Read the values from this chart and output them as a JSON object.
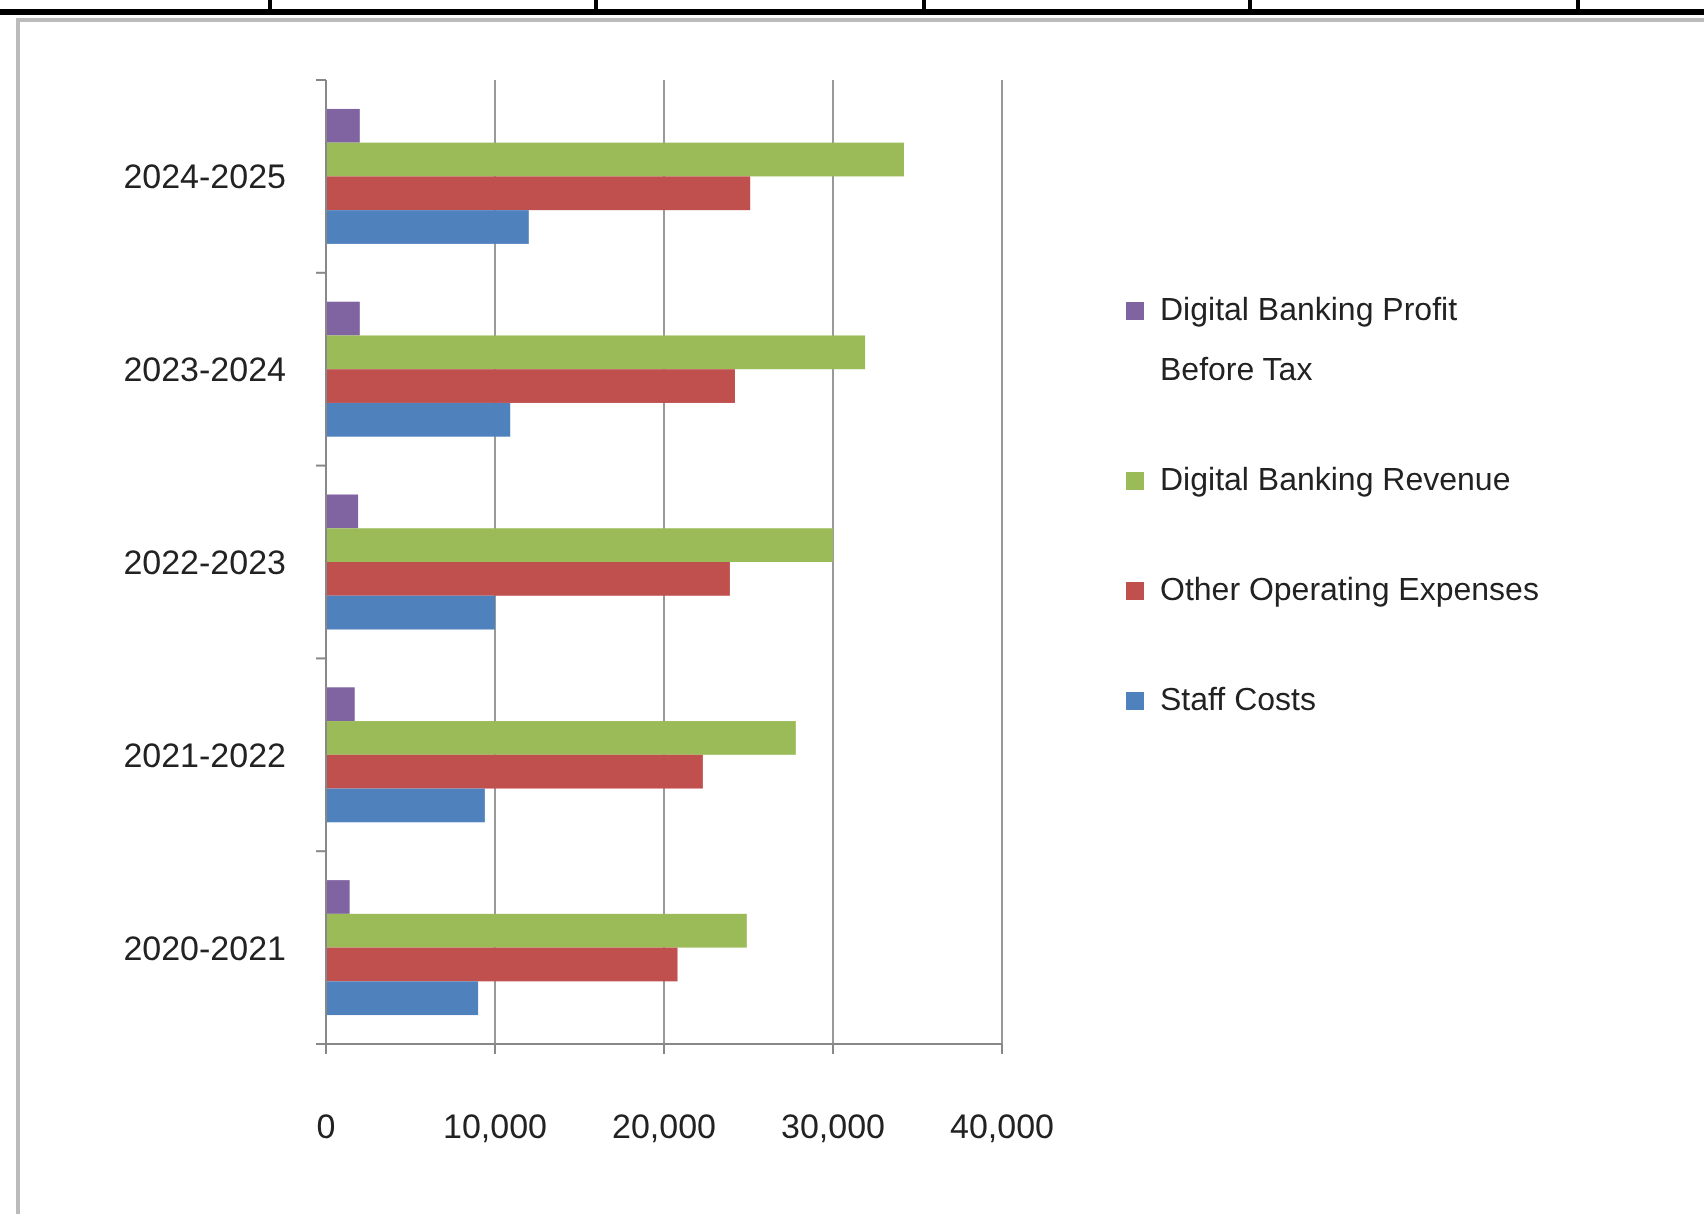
{
  "chart_data": {
    "type": "bar",
    "orientation": "horizontal",
    "categories": [
      "2024-2025",
      "2023-2024",
      "2022-2023",
      "2021-2022",
      "2020-2021"
    ],
    "series": [
      {
        "name": "Digital Banking Profit Before Tax",
        "color": "#8064a2",
        "values": [
          2000,
          2000,
          1900,
          1700,
          1400
        ]
      },
      {
        "name": "Digital Banking Revenue",
        "color": "#9bbb59",
        "values": [
          34200,
          31900,
          30000,
          27800,
          24900
        ]
      },
      {
        "name": "Other Operating Expenses",
        "color": "#c0504d",
        "values": [
          25100,
          24200,
          23900,
          22300,
          20800
        ]
      },
      {
        "name": "Staff Costs",
        "color": "#4f81bd",
        "values": [
          12000,
          10900,
          10000,
          9400,
          9000
        ]
      }
    ],
    "xlim": [
      0,
      40000
    ],
    "xticks": [
      {
        "value": 0,
        "label": "0"
      },
      {
        "value": 10000,
        "label": "10,000"
      },
      {
        "value": 20000,
        "label": "20,000"
      },
      {
        "value": 30000,
        "label": "30,000"
      },
      {
        "value": 40000,
        "label": "40,000"
      }
    ],
    "grid": "x",
    "legend": "right"
  }
}
